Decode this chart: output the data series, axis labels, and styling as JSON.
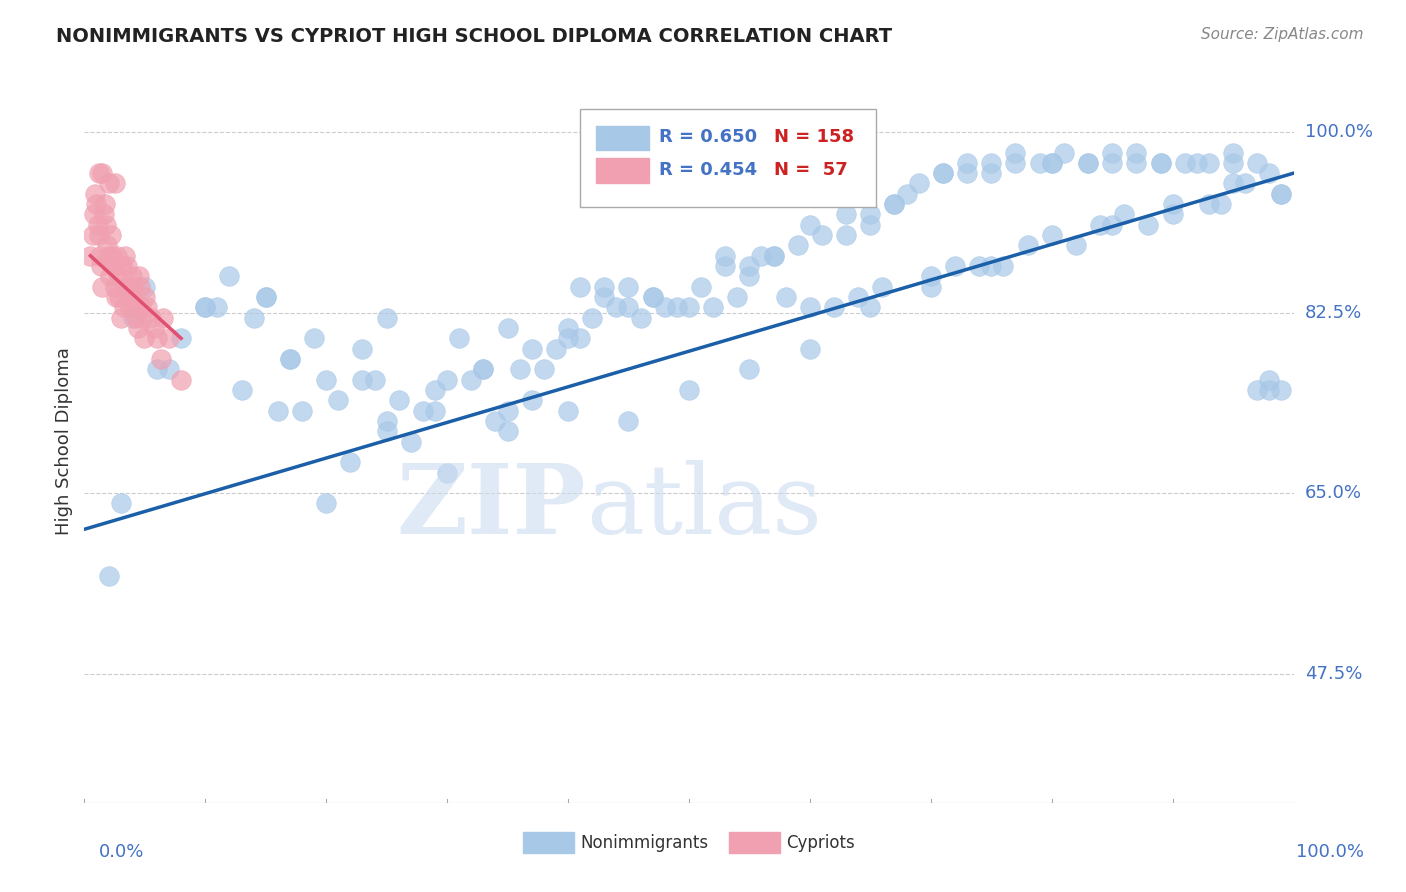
{
  "title": "NONIMMIGRANTS VS CYPRIOT HIGH SCHOOL DIPLOMA CORRELATION CHART",
  "source": "Source: ZipAtlas.com",
  "ylabel": "High School Diploma",
  "ytick_labels": [
    "100.0%",
    "82.5%",
    "65.0%",
    "47.5%"
  ],
  "ytick_values": [
    1.0,
    0.825,
    0.65,
    0.475
  ],
  "xrange": [
    0.0,
    1.0
  ],
  "yrange": [
    0.35,
    1.05
  ],
  "blue_color": "#a8c8e8",
  "pink_color": "#f0a0b0",
  "line_color": "#1a5fa8",
  "pink_line_color": "#e05070",
  "background": "#ffffff",
  "grid_color": "#cccccc",
  "title_color": "#222222",
  "axis_label_color": "#4472c4",
  "blue_scatter_x": [
    0.02,
    0.08,
    0.1,
    0.13,
    0.15,
    0.17,
    0.19,
    0.21,
    0.23,
    0.25,
    0.27,
    0.29,
    0.31,
    0.33,
    0.35,
    0.37,
    0.39,
    0.41,
    0.43,
    0.45,
    0.47,
    0.49,
    0.51,
    0.53,
    0.55,
    0.57,
    0.59,
    0.61,
    0.63,
    0.65,
    0.67,
    0.69,
    0.71,
    0.73,
    0.75,
    0.77,
    0.79,
    0.81,
    0.83,
    0.85,
    0.87,
    0.89,
    0.91,
    0.93,
    0.95,
    0.97,
    0.99,
    0.2,
    0.25,
    0.3,
    0.35,
    0.4,
    0.45,
    0.5,
    0.55,
    0.6,
    0.65,
    0.7,
    0.75,
    0.8,
    0.85,
    0.9,
    0.95,
    0.98,
    0.22,
    0.28,
    0.34,
    0.4,
    0.46,
    0.52,
    0.58,
    0.64,
    0.7,
    0.76,
    0.82,
    0.88,
    0.94,
    0.99,
    0.18,
    0.24,
    0.3,
    0.36,
    0.42,
    0.48,
    0.54,
    0.6,
    0.66,
    0.72,
    0.78,
    0.84,
    0.9,
    0.96,
    0.16,
    0.26,
    0.38,
    0.5,
    0.62,
    0.74,
    0.86,
    0.98,
    0.14,
    0.32,
    0.56,
    0.8,
    0.04,
    0.12,
    0.44,
    0.68,
    0.92,
    0.05,
    0.15,
    0.25,
    0.35,
    0.45,
    0.55,
    0.65,
    0.75,
    0.85,
    0.95,
    0.98,
    0.1,
    0.2,
    0.4,
    0.6,
    0.8,
    0.99,
    0.17,
    0.33,
    0.67,
    0.83,
    0.07,
    0.23,
    0.47,
    0.73,
    0.97,
    0.03,
    0.37,
    0.63,
    0.87,
    0.11,
    0.43,
    0.71,
    0.93,
    0.06,
    0.53,
    0.77,
    0.29,
    0.57,
    0.89,
    0.41
  ],
  "blue_scatter_y": [
    0.57,
    0.8,
    0.83,
    0.75,
    0.84,
    0.78,
    0.8,
    0.74,
    0.76,
    0.72,
    0.7,
    0.75,
    0.8,
    0.77,
    0.73,
    0.74,
    0.79,
    0.8,
    0.84,
    0.83,
    0.84,
    0.83,
    0.85,
    0.87,
    0.86,
    0.88,
    0.89,
    0.9,
    0.9,
    0.92,
    0.93,
    0.95,
    0.96,
    0.97,
    0.97,
    0.98,
    0.97,
    0.98,
    0.97,
    0.98,
    0.98,
    0.97,
    0.97,
    0.97,
    0.98,
    0.97,
    0.75,
    0.64,
    0.71,
    0.67,
    0.71,
    0.73,
    0.72,
    0.75,
    0.77,
    0.79,
    0.83,
    0.85,
    0.87,
    0.9,
    0.91,
    0.93,
    0.95,
    0.76,
    0.68,
    0.73,
    0.72,
    0.8,
    0.82,
    0.83,
    0.84,
    0.84,
    0.86,
    0.87,
    0.89,
    0.91,
    0.93,
    0.94,
    0.73,
    0.76,
    0.76,
    0.77,
    0.82,
    0.83,
    0.84,
    0.83,
    0.85,
    0.87,
    0.89,
    0.91,
    0.92,
    0.95,
    0.73,
    0.74,
    0.77,
    0.83,
    0.83,
    0.87,
    0.92,
    0.96,
    0.82,
    0.76,
    0.88,
    0.97,
    0.82,
    0.86,
    0.83,
    0.94,
    0.97,
    0.85,
    0.84,
    0.82,
    0.81,
    0.85,
    0.87,
    0.91,
    0.96,
    0.97,
    0.97,
    0.75,
    0.83,
    0.76,
    0.81,
    0.91,
    0.97,
    0.94,
    0.78,
    0.77,
    0.93,
    0.97,
    0.77,
    0.79,
    0.84,
    0.96,
    0.75,
    0.64,
    0.79,
    0.92,
    0.97,
    0.83,
    0.85,
    0.96,
    0.93,
    0.77,
    0.88,
    0.97,
    0.73,
    0.88,
    0.97,
    0.85
  ],
  "pink_scatter_x": [
    0.005,
    0.007,
    0.008,
    0.009,
    0.01,
    0.011,
    0.012,
    0.013,
    0.014,
    0.015,
    0.016,
    0.017,
    0.018,
    0.019,
    0.02,
    0.021,
    0.022,
    0.023,
    0.024,
    0.025,
    0.026,
    0.027,
    0.028,
    0.029,
    0.03,
    0.031,
    0.032,
    0.033,
    0.034,
    0.035,
    0.036,
    0.037,
    0.038,
    0.039,
    0.04,
    0.041,
    0.042,
    0.043,
    0.044,
    0.045,
    0.046,
    0.047,
    0.048,
    0.049,
    0.05,
    0.052,
    0.055,
    0.058,
    0.06,
    0.063,
    0.065,
    0.07,
    0.08,
    0.012,
    0.015,
    0.02,
    0.025
  ],
  "pink_scatter_y": [
    0.88,
    0.9,
    0.92,
    0.94,
    0.93,
    0.91,
    0.9,
    0.88,
    0.87,
    0.85,
    0.92,
    0.93,
    0.91,
    0.89,
    0.88,
    0.86,
    0.9,
    0.88,
    0.87,
    0.85,
    0.84,
    0.88,
    0.86,
    0.84,
    0.82,
    0.87,
    0.85,
    0.83,
    0.88,
    0.87,
    0.85,
    0.84,
    0.83,
    0.86,
    0.85,
    0.84,
    0.83,
    0.82,
    0.81,
    0.86,
    0.85,
    0.83,
    0.82,
    0.8,
    0.84,
    0.83,
    0.82,
    0.81,
    0.8,
    0.78,
    0.82,
    0.8,
    0.76,
    0.96,
    0.96,
    0.95,
    0.95
  ],
  "line_y_start": 0.615,
  "line_y_end": 0.96,
  "pink_line_x": [
    0.005,
    0.08
  ],
  "pink_line_y": [
    0.88,
    0.8
  ]
}
